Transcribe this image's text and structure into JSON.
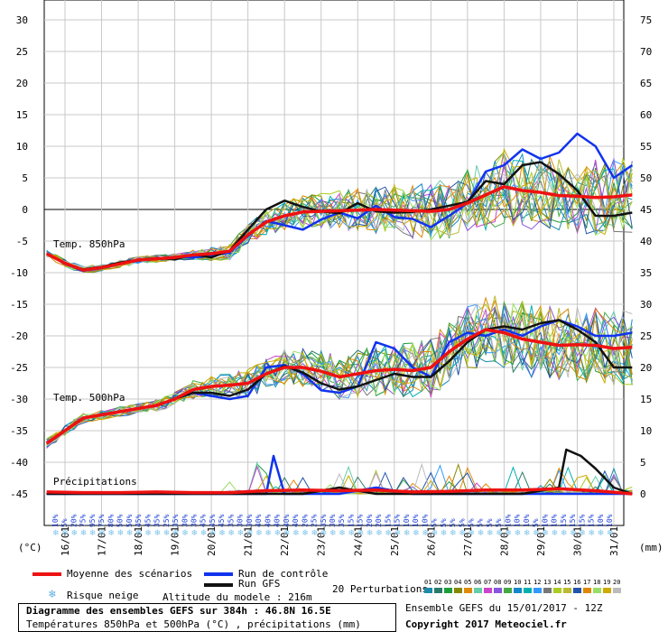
{
  "chart_data": {
    "type": "line",
    "title": "Diagramme des ensembles GEFS sur 384h : 46.8N 16.5E",
    "subtitle": "Températures 850hPa et 500hPa (°C) , précipitations (mm)",
    "left_unit": "(°C)",
    "right_unit": "(mm)",
    "left_axis": {
      "range": [
        -47,
        32
      ],
      "ticks": [
        30,
        25,
        20,
        15,
        10,
        5,
        0,
        -5,
        -10,
        -15,
        -20,
        -25,
        -30,
        -35,
        -40,
        -45
      ]
    },
    "right_axis": {
      "range": [
        -3,
        76
      ],
      "ticks": [
        75,
        70,
        65,
        60,
        55,
        50,
        45,
        40,
        35,
        30,
        25,
        20,
        15,
        10,
        5,
        0
      ]
    },
    "x_range": [
      0,
      16
    ],
    "x_tick_labels": [
      "16/01",
      "17/01",
      "18/01",
      "19/01",
      "20/01",
      "21/01",
      "22/01",
      "23/01",
      "24/01",
      "25/01",
      "26/01",
      "27/01",
      "28/01",
      "29/01",
      "30/01",
      "31/01"
    ],
    "grid": true,
    "panel_labels": [
      "Temp. 850hPa",
      "Temp. 500hPa",
      "Précipitations"
    ],
    "series": [
      {
        "name": "Moyenne des scénarios",
        "color": "#ee1111",
        "panel": "t850",
        "x": [
          0,
          0.5,
          1,
          1.5,
          2,
          2.5,
          3,
          3.5,
          4,
          4.5,
          5,
          5.5,
          6,
          6.5,
          7,
          7.5,
          8,
          8.5,
          9,
          9.5,
          10,
          10.5,
          11,
          11.5,
          12,
          12.5,
          13,
          13.5,
          14,
          14.5,
          15,
          15.5,
          16
        ],
        "y": [
          -7,
          -8.5,
          -9.6,
          -9.2,
          -8.6,
          -8,
          -7.8,
          -7.6,
          -7.2,
          -7,
          -6.6,
          -4,
          -2,
          -1,
          -0.4,
          -0.3,
          -0.2,
          -0.1,
          0,
          -0.1,
          -0.2,
          -0.3,
          0,
          1,
          2.3,
          3.6,
          3,
          2.7,
          2.2,
          2.1,
          1.9,
          2,
          2.3
        ]
      },
      {
        "name": "Run de contrôle",
        "color": "#1133ee",
        "panel": "t850",
        "x": [
          0,
          0.5,
          1,
          1.5,
          2,
          2.5,
          3,
          3.5,
          4,
          4.5,
          5,
          5.5,
          6,
          6.5,
          7,
          7.5,
          8,
          8.5,
          9,
          9.5,
          10,
          10.5,
          11,
          11.5,
          12,
          12.5,
          13,
          13.5,
          14,
          14.5,
          15,
          15.5,
          16
        ],
        "y": [
          -7,
          -8.6,
          -9.7,
          -9.3,
          -8.5,
          -8.1,
          -7.8,
          -7.5,
          -7.6,
          -7.3,
          -6.8,
          -4.2,
          -1.8,
          -2.5,
          -3.2,
          -1.6,
          -0.5,
          -1.4,
          0.6,
          -1.2,
          -1.5,
          -2.8,
          -1,
          1,
          6,
          7,
          9.5,
          8,
          9,
          12,
          10,
          5,
          7
        ]
      },
      {
        "name": "Run GFS",
        "color": "#111111",
        "panel": "t850",
        "x": [
          0,
          0.5,
          1,
          1.5,
          2,
          2.5,
          3,
          3.5,
          4,
          4.5,
          5,
          5.5,
          6,
          6.5,
          7,
          7.5,
          8,
          8.5,
          9,
          9.5,
          10,
          10.5,
          11,
          11.5,
          12,
          12.5,
          13,
          13.5,
          14,
          14.5,
          15,
          15.5,
          16
        ],
        "y": [
          -7,
          -8.5,
          -9.5,
          -9.1,
          -8.4,
          -8,
          -7.7,
          -7.9,
          -7.1,
          -7.6,
          -6.5,
          -3.2,
          0,
          1.4,
          0.4,
          -0.3,
          -0.6,
          1,
          -0.3,
          -0.5,
          -0.4,
          0,
          0.6,
          1.2,
          4.5,
          4,
          7,
          7.5,
          5.6,
          3,
          -1,
          -1,
          -0.5
        ]
      },
      {
        "name": "Moyenne des scénarios",
        "color": "#ee1111",
        "panel": "t500",
        "x": [
          0,
          0.5,
          1,
          1.5,
          2,
          2.5,
          3,
          3.5,
          4,
          4.5,
          5,
          5.5,
          6,
          6.5,
          7,
          7.5,
          8,
          8.5,
          9,
          9.5,
          10,
          10.5,
          11,
          11.5,
          12,
          12.5,
          13,
          13.5,
          14,
          14.5,
          15,
          15.5,
          16
        ],
        "y": [
          -37,
          -35,
          -33,
          -32.5,
          -32,
          -31.5,
          -31,
          -30,
          -28.5,
          -28,
          -27.8,
          -27.5,
          -26,
          -25,
          -25,
          -25.6,
          -26.5,
          -26,
          -25.5,
          -25.3,
          -25.5,
          -25,
          -22.5,
          -20.5,
          -19,
          -19.5,
          -20.5,
          -21,
          -21.5,
          -21.4,
          -21.5,
          -22,
          -21.8
        ]
      },
      {
        "name": "Run de contrôle",
        "color": "#1133ee",
        "panel": "t500",
        "x": [
          0,
          0.5,
          1,
          1.5,
          2,
          2.5,
          3,
          3.5,
          4,
          4.5,
          5,
          5.5,
          6,
          6.5,
          7,
          7.5,
          8,
          8.5,
          9,
          9.5,
          10,
          10.5,
          11,
          11.5,
          12,
          12.5,
          13,
          13.5,
          14,
          14.5,
          15,
          15.5,
          16
        ],
        "y": [
          -37,
          -35,
          -33,
          -32.5,
          -32,
          -31.5,
          -31,
          -30,
          -29,
          -29.5,
          -30,
          -29.5,
          -25,
          -24.6,
          -26,
          -28.6,
          -29,
          -28,
          -21,
          -22,
          -25,
          -26.5,
          -21,
          -19.5,
          -20,
          -19,
          -20,
          -18.5,
          -17.5,
          -18.5,
          -20,
          -20,
          -19.5
        ]
      },
      {
        "name": "Run GFS",
        "color": "#111111",
        "panel": "t500",
        "x": [
          0,
          0.5,
          1,
          1.5,
          2,
          2.5,
          3,
          3.5,
          4,
          4.5,
          5,
          5.5,
          6,
          6.5,
          7,
          7.5,
          8,
          8.5,
          9,
          9.5,
          10,
          10.5,
          11,
          11.5,
          12,
          12.5,
          13,
          13.5,
          14,
          14.5,
          15,
          15.5,
          16
        ],
        "y": [
          -37,
          -35,
          -33,
          -32.5,
          -32,
          -31.5,
          -31,
          -30,
          -29,
          -29,
          -29.5,
          -28.5,
          -26,
          -24.8,
          -25.8,
          -27.5,
          -28.5,
          -28,
          -27,
          -26,
          -26.5,
          -26.5,
          -24,
          -21,
          -19,
          -18.5,
          -19,
          -18,
          -17.5,
          -19,
          -21,
          -25,
          -25
        ]
      },
      {
        "name": "Moyenne des scénarios",
        "color": "#ee1111",
        "panel": "precip",
        "x": [
          0,
          1,
          2,
          3,
          4,
          5,
          6,
          7,
          8,
          9,
          10,
          11,
          12,
          13,
          14,
          15,
          16
        ],
        "y": [
          0.3,
          0.2,
          0.2,
          0.3,
          0.2,
          0.2,
          0.5,
          0.6,
          0.5,
          0.6,
          0.3,
          0.4,
          0.6,
          0.6,
          0.8,
          0.5,
          0
        ]
      },
      {
        "name": "Run de contrôle",
        "color": "#1133ee",
        "panel": "precip",
        "x": [
          0,
          1,
          2,
          3,
          4,
          5,
          6,
          6.2,
          6.5,
          7,
          8,
          9,
          10,
          11,
          12,
          13,
          14,
          15,
          16
        ],
        "y": [
          0,
          0,
          0,
          0,
          0,
          0,
          0,
          6,
          0,
          0,
          0,
          1,
          0,
          0,
          0,
          0,
          0,
          0,
          0
        ]
      },
      {
        "name": "Run GFS",
        "color": "#111111",
        "panel": "precip",
        "x": [
          0,
          1,
          2,
          3,
          4,
          5,
          6,
          7,
          8,
          9,
          10,
          11,
          12,
          13,
          14,
          14.2,
          14.6,
          15,
          15.5,
          16
        ],
        "y": [
          0,
          0,
          0,
          0,
          0,
          0,
          0,
          0,
          1,
          0,
          0,
          0,
          0,
          0,
          1,
          7,
          6,
          4,
          1,
          0
        ]
      }
    ],
    "snow_risk_percent": [
      "10%",
      "5%",
      "20%",
      "75%",
      "95%",
      "75%",
      "80%",
      "50%",
      "50%",
      "45%",
      "45%",
      "35%",
      "25%",
      "35%",
      "30%",
      "30%",
      "45%",
      "45%",
      "45%",
      "35%",
      "30%",
      "30%",
      "40%",
      "40%",
      "40%",
      "40%",
      "40%",
      "20%",
      "25%",
      "35%",
      "30%",
      "35%",
      "15%",
      "15%",
      "20%",
      "20%",
      "15%",
      "15%",
      "10%",
      "10%",
      "10%",
      "5%",
      "5%",
      "5%",
      "5%",
      "5%",
      "5%",
      "5%",
      "5%",
      "10%",
      "10%",
      "10%",
      "5%",
      "10%",
      "10%",
      "15%",
      "15%",
      "15%",
      "15%",
      "10%",
      "10%"
    ]
  },
  "legend": {
    "mean": "Moyenne des scénarios",
    "control": "Run de contrôle",
    "gfs": "Run GFS",
    "perturbations": "20 Perturbations",
    "perturbation_ids": [
      "01",
      "02",
      "03",
      "04",
      "05",
      "06",
      "07",
      "08",
      "09",
      "10",
      "11",
      "12",
      "13",
      "14",
      "15",
      "16",
      "17",
      "18",
      "19",
      "20"
    ],
    "perturbation_colors": [
      "#1c8ba8",
      "#2a7a6a",
      "#1e9e3a",
      "#888800",
      "#e08a0a",
      "#66ccaa",
      "#cc44cc",
      "#8855dd",
      "#44aa44",
      "#1188cc",
      "#00b0b0",
      "#3399ff",
      "#777777",
      "#aacc22",
      "#bbbb33",
      "#2255aa",
      "#dd8800",
      "#99dd66",
      "#ccaa00",
      "#bbbbbb"
    ],
    "snow_risk": "Risque neige",
    "altitude": "Altitude du modele : 216m"
  },
  "footer": {
    "run": "Ensemble GEFS du 15/01/2017 - 12Z",
    "copyright": "Copyright 2017 Meteociel.fr"
  },
  "colors": {
    "mean": "#ee1111",
    "control": "#1133ee",
    "gfs": "#111111",
    "snow": "#7fc4ea"
  }
}
